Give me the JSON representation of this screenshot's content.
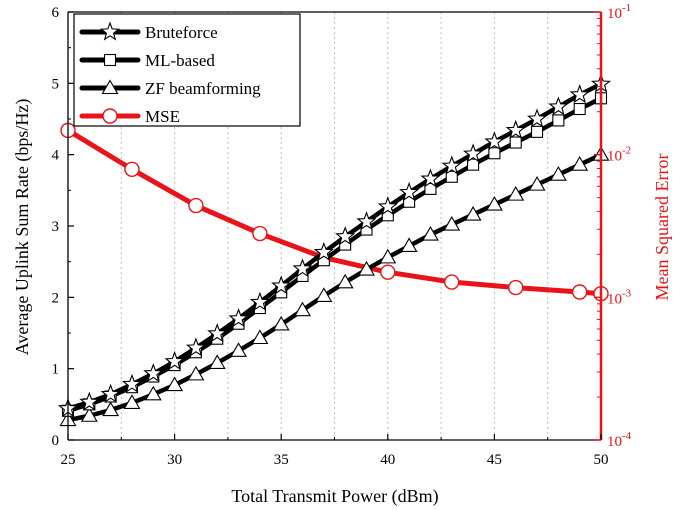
{
  "chart_data": {
    "type": "line",
    "x": [
      25,
      26,
      27,
      28,
      29,
      30,
      31,
      32,
      33,
      34,
      35,
      36,
      37,
      38,
      39,
      40,
      41,
      42,
      43,
      44,
      45,
      46,
      47,
      48,
      49,
      50
    ],
    "xlabel": "Total Transmit Power (dBm)",
    "ylabel": "Average Uplink Sum Rate (bps/Hz)",
    "ylabel_right": "Mean Squared Error",
    "xlim": [
      25,
      50
    ],
    "ylim": [
      0,
      6
    ],
    "ylim_right": [
      0.0001,
      0.1
    ],
    "right_axis_scale": "log",
    "x_ticks": [
      "25",
      "30",
      "35",
      "40",
      "45",
      "50"
    ],
    "y_ticks": [
      "0",
      "1",
      "2",
      "3",
      "4",
      "5",
      "6"
    ],
    "right_ticks": [
      {
        "base": "10",
        "exp": "-4",
        "value": 0.0001
      },
      {
        "base": "10",
        "exp": "-3",
        "value": 0.001
      },
      {
        "base": "10",
        "exp": "-2",
        "value": 0.01
      },
      {
        "base": "10",
        "exp": "-1",
        "value": 0.1
      }
    ],
    "grid": "vertical dotted",
    "legend_position": "top-left",
    "series": [
      {
        "name": "Bruteforce",
        "axis": "left",
        "marker": "star",
        "color": "#000000",
        "values": [
          0.44,
          0.53,
          0.64,
          0.78,
          0.93,
          1.1,
          1.29,
          1.49,
          1.7,
          1.93,
          2.16,
          2.4,
          2.63,
          2.85,
          3.06,
          3.27,
          3.47,
          3.66,
          3.84,
          4.01,
          4.18,
          4.34,
          4.5,
          4.67,
          4.84,
          4.99
        ]
      },
      {
        "name": "ML-based",
        "axis": "left",
        "marker": "square",
        "color": "#000000",
        "values": [
          0.41,
          0.5,
          0.61,
          0.74,
          0.89,
          1.05,
          1.23,
          1.42,
          1.63,
          1.85,
          2.07,
          2.3,
          2.52,
          2.74,
          2.95,
          3.15,
          3.34,
          3.52,
          3.69,
          3.86,
          4.02,
          4.17,
          4.32,
          4.48,
          4.64,
          4.79
        ]
      },
      {
        "name": "ZF beamforming",
        "axis": "left",
        "marker": "triangle",
        "color": "#000000",
        "values": [
          0.28,
          0.34,
          0.42,
          0.52,
          0.64,
          0.77,
          0.92,
          1.08,
          1.25,
          1.43,
          1.62,
          1.82,
          2.02,
          2.21,
          2.39,
          2.56,
          2.72,
          2.88,
          3.02,
          3.16,
          3.3,
          3.44,
          3.58,
          3.72,
          3.86,
          4.0
        ]
      },
      {
        "name": "MSE",
        "axis": "right",
        "marker": "circle",
        "color": "#e8141a",
        "x": [
          25,
          28,
          31,
          34,
          37,
          40,
          43,
          46,
          49,
          50
        ],
        "values": [
          0.0148,
          0.0079,
          0.0044,
          0.0028,
          0.0019,
          0.0015,
          0.00128,
          0.00117,
          0.00109,
          0.00106
        ]
      }
    ]
  }
}
